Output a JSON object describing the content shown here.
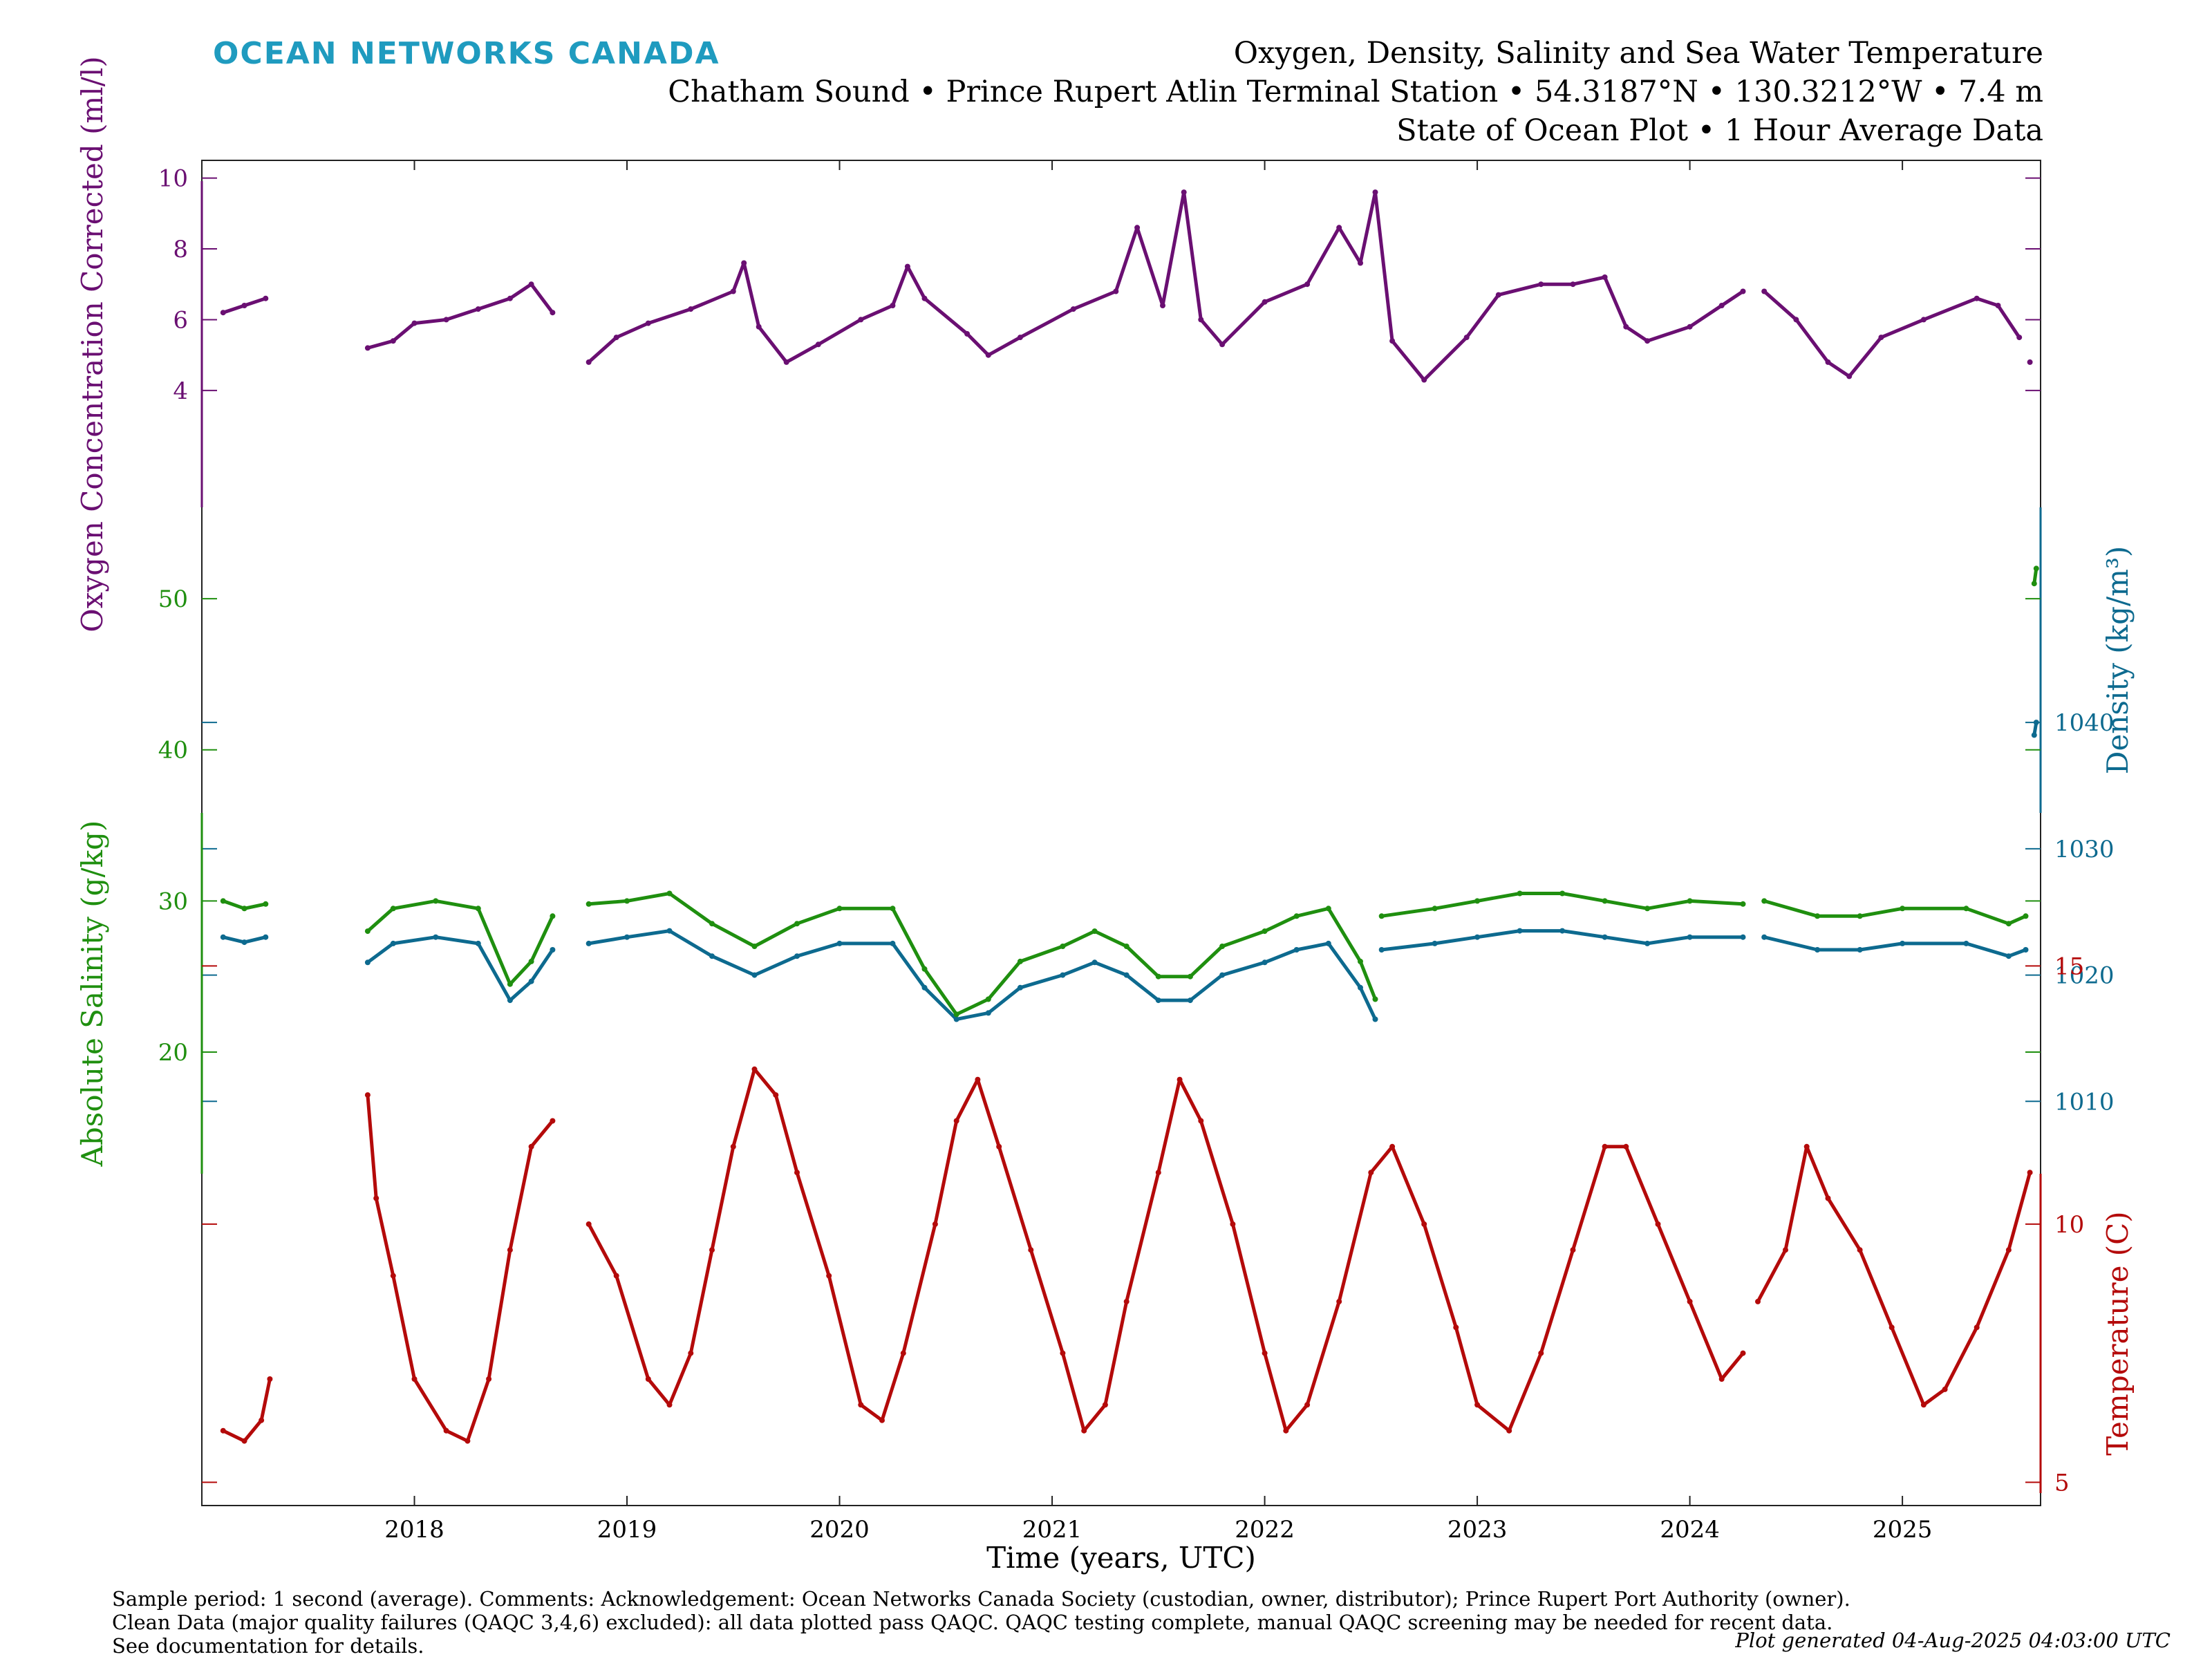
{
  "logo_text": "OCEAN NETWORKS CANADA",
  "title_lines": [
    "Oxygen, Density, Salinity and Sea Water Temperature",
    "Chatham Sound • Prince Rupert Atlin Terminal Station • 54.3187°N • 130.3212°W • 7.4 m",
    "State of Ocean Plot • 1 Hour Average Data"
  ],
  "footer_lines": [
    "Sample period: 1 second (average). Comments: Acknowledgement: Ocean Networks Canada Society (custodian, owner, distributor); Prince Rupert Port Authority (owner).",
    "Clean Data (major quality failures (QAQC 3,4,6) excluded): all data plotted pass QAQC. QAQC testing complete, manual QAQC screening may be needed for recent data.",
    "See documentation for details."
  ],
  "generated": "Plot generated 04-Aug-2025 04:03:00 UTC",
  "colors": {
    "oxygen": "#6a0f72",
    "density": "#0d6a8f",
    "salinity": "#1f8f0f",
    "temperature": "#b40a0a",
    "logo": "#1f9bbf"
  },
  "chart_data": {
    "type": "line",
    "xlabel": "Time (years, UTC)",
    "x_ticks": [
      "2018",
      "2019",
      "2020",
      "2021",
      "2022",
      "2023",
      "2024",
      "2025"
    ],
    "xlim": [
      2017.0,
      2025.65
    ],
    "series": [
      {
        "name": "Oxygen Concentration Corrected",
        "axis_label": "Oxygen Concentration Corrected (ml/l)",
        "axis_side": "left",
        "color": "#6a0f72",
        "ticks": [
          4,
          6,
          8,
          10
        ],
        "ylim": [
          -27.5,
          10.5
        ],
        "points": [
          [
            2017.1,
            6.2
          ],
          [
            2017.2,
            6.4
          ],
          [
            2017.3,
            6.6
          ],
          null,
          [
            2017.78,
            5.2
          ],
          [
            2017.9,
            5.4
          ],
          [
            2018.0,
            5.9
          ],
          [
            2018.15,
            6.0
          ],
          [
            2018.3,
            6.3
          ],
          [
            2018.45,
            6.6
          ],
          [
            2018.55,
            7.0
          ],
          [
            2018.65,
            6.2
          ],
          null,
          [
            2018.82,
            4.8
          ],
          [
            2018.95,
            5.5
          ],
          [
            2019.1,
            5.9
          ],
          [
            2019.3,
            6.3
          ],
          [
            2019.5,
            6.8
          ],
          [
            2019.55,
            7.6
          ],
          [
            2019.62,
            5.8
          ],
          [
            2019.75,
            4.8
          ],
          [
            2019.9,
            5.3
          ],
          [
            2020.1,
            6.0
          ],
          [
            2020.25,
            6.4
          ],
          [
            2020.32,
            7.5
          ],
          [
            2020.4,
            6.6
          ],
          [
            2020.6,
            5.6
          ],
          [
            2020.7,
            5.0
          ],
          [
            2020.85,
            5.5
          ],
          [
            2021.1,
            6.3
          ],
          [
            2021.3,
            6.8
          ],
          [
            2021.4,
            8.6
          ],
          [
            2021.52,
            6.4
          ],
          [
            2021.62,
            9.6
          ],
          [
            2021.7,
            6.0
          ],
          [
            2021.8,
            5.3
          ],
          [
            2022.0,
            6.5
          ],
          [
            2022.2,
            7.0
          ],
          [
            2022.35,
            8.6
          ],
          [
            2022.45,
            7.6
          ],
          [
            2022.52,
            9.6
          ],
          [
            2022.6,
            5.4
          ],
          [
            2022.75,
            4.3
          ],
          [
            2022.95,
            5.5
          ],
          [
            2023.1,
            6.7
          ],
          [
            2023.3,
            7.0
          ],
          [
            2023.45,
            7.0
          ],
          [
            2023.6,
            7.2
          ],
          [
            2023.7,
            5.8
          ],
          [
            2023.8,
            5.4
          ],
          [
            2024.0,
            5.8
          ],
          [
            2024.15,
            6.4
          ],
          [
            2024.25,
            6.8
          ],
          null,
          [
            2024.35,
            6.8
          ],
          [
            2024.5,
            6.0
          ],
          [
            2024.65,
            4.8
          ],
          [
            2024.75,
            4.4
          ],
          [
            2024.9,
            5.5
          ],
          [
            2025.1,
            6.0
          ],
          [
            2025.35,
            6.6
          ],
          [
            2025.45,
            6.4
          ],
          [
            2025.55,
            5.5
          ],
          null,
          [
            2025.6,
            4.8
          ]
        ]
      },
      {
        "name": "Density",
        "axis_label": "Density (kg/m³)",
        "axis_side": "right",
        "color": "#0d6a8f",
        "ticks": [
          1010,
          1020,
          1030,
          1040
        ],
        "ylim": [
          978,
          1084.5
        ],
        "points": [
          [
            2017.1,
            1023.0
          ],
          [
            2017.2,
            1022.6
          ],
          [
            2017.3,
            1023.0
          ],
          null,
          [
            2017.78,
            1021.0
          ],
          [
            2017.9,
            1022.5
          ],
          [
            2018.1,
            1023.0
          ],
          [
            2018.3,
            1022.5
          ],
          [
            2018.45,
            1018.0
          ],
          [
            2018.55,
            1019.5
          ],
          [
            2018.65,
            1022.0
          ],
          null,
          [
            2018.82,
            1022.5
          ],
          [
            2019.0,
            1023.0
          ],
          [
            2019.2,
            1023.5
          ],
          [
            2019.4,
            1021.5
          ],
          [
            2019.6,
            1020.0
          ],
          [
            2019.8,
            1021.5
          ],
          [
            2020.0,
            1022.5
          ],
          [
            2020.25,
            1022.5
          ],
          [
            2020.4,
            1019.0
          ],
          [
            2020.55,
            1016.5
          ],
          [
            2020.7,
            1017.0
          ],
          [
            2020.85,
            1019.0
          ],
          [
            2021.05,
            1020.0
          ],
          [
            2021.2,
            1021.0
          ],
          [
            2021.35,
            1020.0
          ],
          [
            2021.5,
            1018.0
          ],
          [
            2021.65,
            1018.0
          ],
          [
            2021.8,
            1020.0
          ],
          [
            2022.0,
            1021.0
          ],
          [
            2022.15,
            1022.0
          ],
          [
            2022.3,
            1022.5
          ],
          [
            2022.45,
            1019.0
          ],
          [
            2022.52,
            1016.5
          ],
          null,
          [
            2022.55,
            1022.0
          ],
          [
            2022.8,
            1022.5
          ],
          [
            2023.0,
            1023.0
          ],
          [
            2023.2,
            1023.5
          ],
          [
            2023.4,
            1023.5
          ],
          [
            2023.6,
            1023.0
          ],
          [
            2023.8,
            1022.5
          ],
          [
            2024.0,
            1023.0
          ],
          [
            2024.25,
            1023.0
          ],
          null,
          [
            2024.35,
            1023.0
          ],
          [
            2024.6,
            1022.0
          ],
          [
            2024.8,
            1022.0
          ],
          [
            2025.0,
            1022.5
          ],
          [
            2025.3,
            1022.5
          ],
          [
            2025.5,
            1021.5
          ],
          [
            2025.58,
            1022.0
          ],
          null,
          [
            2025.62,
            1039.0
          ],
          [
            2025.63,
            1040.0
          ]
        ]
      },
      {
        "name": "Absolute Salinity",
        "axis_label": "Absolute Salinity (g/kg)",
        "axis_side": "left",
        "color": "#1f8f0f",
        "ticks": [
          20,
          30,
          40,
          50
        ],
        "ylim": [
          -10,
          79
        ],
        "points": [
          [
            2017.1,
            30.0
          ],
          [
            2017.2,
            29.5
          ],
          [
            2017.3,
            29.8
          ],
          null,
          [
            2017.78,
            28.0
          ],
          [
            2017.9,
            29.5
          ],
          [
            2018.1,
            30.0
          ],
          [
            2018.3,
            29.5
          ],
          [
            2018.45,
            24.5
          ],
          [
            2018.55,
            26.0
          ],
          [
            2018.65,
            29.0
          ],
          null,
          [
            2018.82,
            29.8
          ],
          [
            2019.0,
            30.0
          ],
          [
            2019.2,
            30.5
          ],
          [
            2019.4,
            28.5
          ],
          [
            2019.6,
            27.0
          ],
          [
            2019.8,
            28.5
          ],
          [
            2020.0,
            29.5
          ],
          [
            2020.25,
            29.5
          ],
          [
            2020.4,
            25.5
          ],
          [
            2020.55,
            22.5
          ],
          [
            2020.7,
            23.5
          ],
          [
            2020.85,
            26.0
          ],
          [
            2021.05,
            27.0
          ],
          [
            2021.2,
            28.0
          ],
          [
            2021.35,
            27.0
          ],
          [
            2021.5,
            25.0
          ],
          [
            2021.65,
            25.0
          ],
          [
            2021.8,
            27.0
          ],
          [
            2022.0,
            28.0
          ],
          [
            2022.15,
            29.0
          ],
          [
            2022.3,
            29.5
          ],
          [
            2022.45,
            26.0
          ],
          [
            2022.52,
            23.5
          ],
          null,
          [
            2022.55,
            29.0
          ],
          [
            2022.8,
            29.5
          ],
          [
            2023.0,
            30.0
          ],
          [
            2023.2,
            30.5
          ],
          [
            2023.4,
            30.5
          ],
          [
            2023.6,
            30.0
          ],
          [
            2023.8,
            29.5
          ],
          [
            2024.0,
            30.0
          ],
          [
            2024.25,
            29.8
          ],
          null,
          [
            2024.35,
            30.0
          ],
          [
            2024.6,
            29.0
          ],
          [
            2024.8,
            29.0
          ],
          [
            2025.0,
            29.5
          ],
          [
            2025.3,
            29.5
          ],
          [
            2025.5,
            28.5
          ],
          [
            2025.58,
            29.0
          ],
          null,
          [
            2025.62,
            51.0
          ],
          [
            2025.63,
            52.0
          ]
        ]
      },
      {
        "name": "Temperature",
        "axis_label": "Temperature (C)",
        "axis_side": "right",
        "color": "#b40a0a",
        "ticks": [
          5,
          10,
          15
        ],
        "ylim": [
          4.55,
          30.6
        ],
        "points": [
          [
            2017.1,
            6.0
          ],
          [
            2017.2,
            5.8
          ],
          [
            2017.28,
            6.2
          ],
          [
            2017.32,
            7.0
          ],
          null,
          [
            2017.78,
            12.5
          ],
          [
            2017.82,
            10.5
          ],
          [
            2017.9,
            9.0
          ],
          [
            2018.0,
            7.0
          ],
          [
            2018.15,
            6.0
          ],
          [
            2018.25,
            5.8
          ],
          [
            2018.35,
            7.0
          ],
          [
            2018.45,
            9.5
          ],
          [
            2018.55,
            11.5
          ],
          [
            2018.65,
            12.0
          ],
          null,
          [
            2018.82,
            10.0
          ],
          [
            2018.95,
            9.0
          ],
          [
            2019.1,
            7.0
          ],
          [
            2019.2,
            6.5
          ],
          [
            2019.3,
            7.5
          ],
          [
            2019.4,
            9.5
          ],
          [
            2019.5,
            11.5
          ],
          [
            2019.6,
            13.0
          ],
          [
            2019.7,
            12.5
          ],
          [
            2019.8,
            11.0
          ],
          [
            2019.95,
            9.0
          ],
          [
            2020.1,
            6.5
          ],
          [
            2020.2,
            6.2
          ],
          [
            2020.3,
            7.5
          ],
          [
            2020.45,
            10.0
          ],
          [
            2020.55,
            12.0
          ],
          [
            2020.65,
            12.8
          ],
          [
            2020.75,
            11.5
          ],
          [
            2020.9,
            9.5
          ],
          [
            2021.05,
            7.5
          ],
          [
            2021.15,
            6.0
          ],
          [
            2021.25,
            6.5
          ],
          [
            2021.35,
            8.5
          ],
          [
            2021.5,
            11.0
          ],
          [
            2021.6,
            12.8
          ],
          [
            2021.7,
            12.0
          ],
          [
            2021.85,
            10.0
          ],
          [
            2022.0,
            7.5
          ],
          [
            2022.1,
            6.0
          ],
          [
            2022.2,
            6.5
          ],
          [
            2022.35,
            8.5
          ],
          [
            2022.5,
            11.0
          ],
          [
            2022.6,
            11.5
          ],
          [
            2022.75,
            10.0
          ],
          [
            2022.9,
            8.0
          ],
          [
            2023.0,
            6.5
          ],
          [
            2023.15,
            6.0
          ],
          [
            2023.3,
            7.5
          ],
          [
            2023.45,
            9.5
          ],
          [
            2023.6,
            11.5
          ],
          [
            2023.7,
            11.5
          ],
          [
            2023.85,
            10.0
          ],
          [
            2024.0,
            8.5
          ],
          [
            2024.15,
            7.0
          ],
          [
            2024.25,
            7.5
          ],
          null,
          [
            2024.32,
            8.5
          ],
          [
            2024.45,
            9.5
          ],
          [
            2024.55,
            11.5
          ],
          [
            2024.65,
            10.5
          ],
          [
            2024.8,
            9.5
          ],
          [
            2024.95,
            8.0
          ],
          [
            2025.1,
            6.5
          ],
          [
            2025.2,
            6.8
          ],
          [
            2025.35,
            8.0
          ],
          [
            2025.5,
            9.5
          ],
          [
            2025.6,
            11.0
          ]
        ]
      }
    ]
  }
}
